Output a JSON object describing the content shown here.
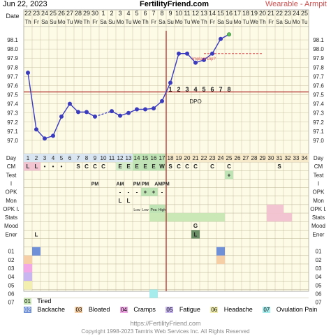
{
  "header": {
    "date": "Jun 22, 2023",
    "site": "FertilityFriend.com",
    "right": "Wearable - Armpit"
  },
  "row_labels": {
    "date": "Date",
    "cd": "Day",
    "cm": "CM",
    "test": "Test",
    "i": "I",
    "opk": "OPK",
    "mon": "Mon",
    "opkl": "OPK I.",
    "stats": "Stats",
    "mood": "Mood",
    "ener": "Ener"
  },
  "chart_data": {
    "type": "line",
    "title": "",
    "xlabel": "Day",
    "ylabel": "",
    "ylim": [
      96.9,
      98.2
    ],
    "yticks": [
      "97.0",
      "97.1",
      "97.2",
      "97.3",
      "97.4",
      "97.5",
      "97.6",
      "97.7",
      "97.8",
      "97.9",
      "98.0",
      "98.1"
    ],
    "dates": [
      "22",
      "23",
      "24",
      "25",
      "26",
      "27",
      "28",
      "29",
      "30",
      "1",
      "2",
      "3",
      "4",
      "5",
      "6",
      "7",
      "8",
      "9",
      "10",
      "11",
      "12",
      "13",
      "14",
      "15",
      "16",
      "17",
      "18",
      "19",
      "20",
      "21",
      "22",
      "23",
      "24",
      "25"
    ],
    "weekdays": [
      "Th",
      "Fr",
      "Sa",
      "Su",
      "Mo",
      "Tu",
      "We",
      "Th",
      "Fr",
      "Sa",
      "Su",
      "Mo",
      "Tu",
      "We",
      "Th",
      "Fr",
      "Sa",
      "Su",
      "Mo",
      "Tu",
      "We",
      "Th",
      "Fr",
      "Sa",
      "Su",
      "Mo",
      "Tu",
      "We",
      "Th",
      "Fr",
      "Sa",
      "Su",
      "Mo",
      "Tu"
    ],
    "days": [
      "1",
      "2",
      "3",
      "4",
      "5",
      "6",
      "7",
      "8",
      "9",
      "10",
      "11",
      "12",
      "13",
      "14",
      "15",
      "16",
      "17",
      "18",
      "19",
      "20",
      "21",
      "22",
      "23",
      "24",
      "25",
      "26",
      "27",
      "28",
      "29",
      "30",
      "31",
      "32",
      "33",
      "34"
    ],
    "temps": [
      97.74,
      97.12,
      97.02,
      97.05,
      97.26,
      97.4,
      97.31,
      97.31,
      97.26,
      null,
      97.32,
      97.27,
      97.3,
      97.34,
      97.34,
      97.35,
      97.43,
      97.63,
      97.95,
      97.95,
      97.85,
      97.88,
      97.95,
      98.11,
      98.16
    ],
    "open_circle_days": [
      25
    ],
    "coverline": 97.53,
    "ovulation_day": 17,
    "dpo_labels": [
      "1",
      "2",
      "3",
      "4",
      "5",
      "6",
      "7",
      "8"
    ],
    "dpo_text": "DPO",
    "annotation": "Implant Dip?",
    "cm_row": [
      "L",
      "L",
      "•",
      "•",
      "•",
      "",
      "S",
      "C",
      "C",
      "C",
      "",
      "E",
      "E",
      "E",
      "E",
      "E",
      "W",
      "S",
      "C",
      "C",
      "C",
      "",
      "C",
      "",
      "C",
      "",
      "",
      "",
      "",
      "",
      "S",
      "",
      "",
      ""
    ],
    "test_row": {
      "25": "+"
    },
    "i_row": {
      "9": "PM",
      "12": "AM",
      "14": "PM",
      "15": "PM",
      "17": "AMPM"
    },
    "opk_row": {
      "12": "-",
      "13": "-",
      "14": "-",
      "15": "+",
      "16": "+",
      "17": "-"
    },
    "mon_row": {
      "12": "L",
      "13": "L"
    },
    "opkl_row": {
      "14": "Low",
      "15": "Low",
      "16": "Pea",
      "17": "High"
    },
    "mood_row": {
      "21": "G"
    },
    "ener_row": {
      "2": "L",
      "21": "L"
    },
    "symptom_rows": [
      "01",
      "02",
      "03",
      "04",
      "05",
      "06",
      "07"
    ],
    "symptoms": [
      {
        "code": "01",
        "name": "Tired"
      },
      {
        "code": "02",
        "name": "Backache"
      },
      {
        "code": "03",
        "name": "Bloated"
      },
      {
        "code": "04",
        "name": "Cramps"
      },
      {
        "code": "05",
        "name": "Fatigue"
      },
      {
        "code": "06",
        "name": "Headache"
      },
      {
        "code": "07",
        "name": "Ovulation Pain"
      }
    ],
    "grid": true
  },
  "colors": {
    "line": "#3b3bbf",
    "coverline": "#b03030",
    "implant": "#e05050",
    "background": "#fdfbe6",
    "fertile": "#bfe3b4",
    "stats": "#c9e8b6",
    "mood": "#6d8f68",
    "pink": "#f2c3d0",
    "day_header": "#9bc0e0"
  },
  "footer": {
    "url": "https://FertilityFriend.com",
    "copy": "Copyright 1998-2023 Tamtris Web Services Inc. All Rights Reserved"
  }
}
